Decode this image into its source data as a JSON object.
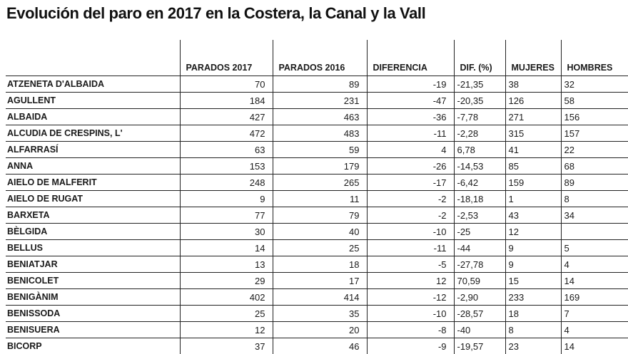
{
  "title": "Evolución del paro en 2017 en la Costera, la Canal y la Vall",
  "headers": [
    "",
    "PARADOS 2017",
    "PARADOS 2016",
    "DIFERENCIA",
    "DIF. (%)",
    "MUJERES",
    "HOMBRES"
  ],
  "rows": [
    [
      "ATZENETA D'ALBAIDA",
      "70",
      "89",
      "-19",
      "-21,35",
      "38",
      "32"
    ],
    [
      "AGULLENT",
      "184",
      "231",
      "-47",
      "-20,35",
      "126",
      "58"
    ],
    [
      "ALBAIDA",
      "427",
      "463",
      "-36",
      "-7,78",
      "271",
      "156"
    ],
    [
      "ALCUDIA DE CRESPINS, L'",
      "472",
      "483",
      "-11",
      "-2,28",
      "315",
      "157"
    ],
    [
      "ALFARRASÍ",
      "63",
      "59",
      "4",
      "6,78",
      "41",
      "22"
    ],
    [
      "ANNA",
      "153",
      "179",
      "-26",
      "-14,53",
      "85",
      "68"
    ],
    [
      "AIELO DE MALFERIT",
      "248",
      "265",
      "-17",
      "-6,42",
      "159",
      "89"
    ],
    [
      "AIELO DE RUGAT",
      "9",
      "11",
      "-2",
      "-18,18",
      "1",
      "8"
    ],
    [
      "BARXETA",
      "77",
      "79",
      "-2",
      "-2,53",
      "43",
      "34"
    ],
    [
      "BÈLGIDA",
      "30",
      "40",
      "-10",
      "-25",
      "12",
      ""
    ],
    [
      "BELLUS",
      "14",
      "25",
      "-11",
      "-44",
      "9",
      "5"
    ],
    [
      "BENIATJAR",
      "13",
      "18",
      "-5",
      "-27,78",
      "9",
      "4"
    ],
    [
      "BENICOLET",
      "29",
      "17",
      "12",
      "70,59",
      "15",
      "14"
    ],
    [
      "BENIGÀNIM",
      "402",
      "414",
      "-12",
      "-2,90",
      "233",
      "169"
    ],
    [
      "BENISSODA",
      "25",
      "35",
      "-10",
      "-28,57",
      "18",
      "7"
    ],
    [
      "BENISUERA",
      "12",
      "20",
      "-8",
      "-40",
      "8",
      "4"
    ],
    [
      "BICORP",
      "37",
      "46",
      "-9",
      "-19,57",
      "23",
      "14"
    ]
  ]
}
